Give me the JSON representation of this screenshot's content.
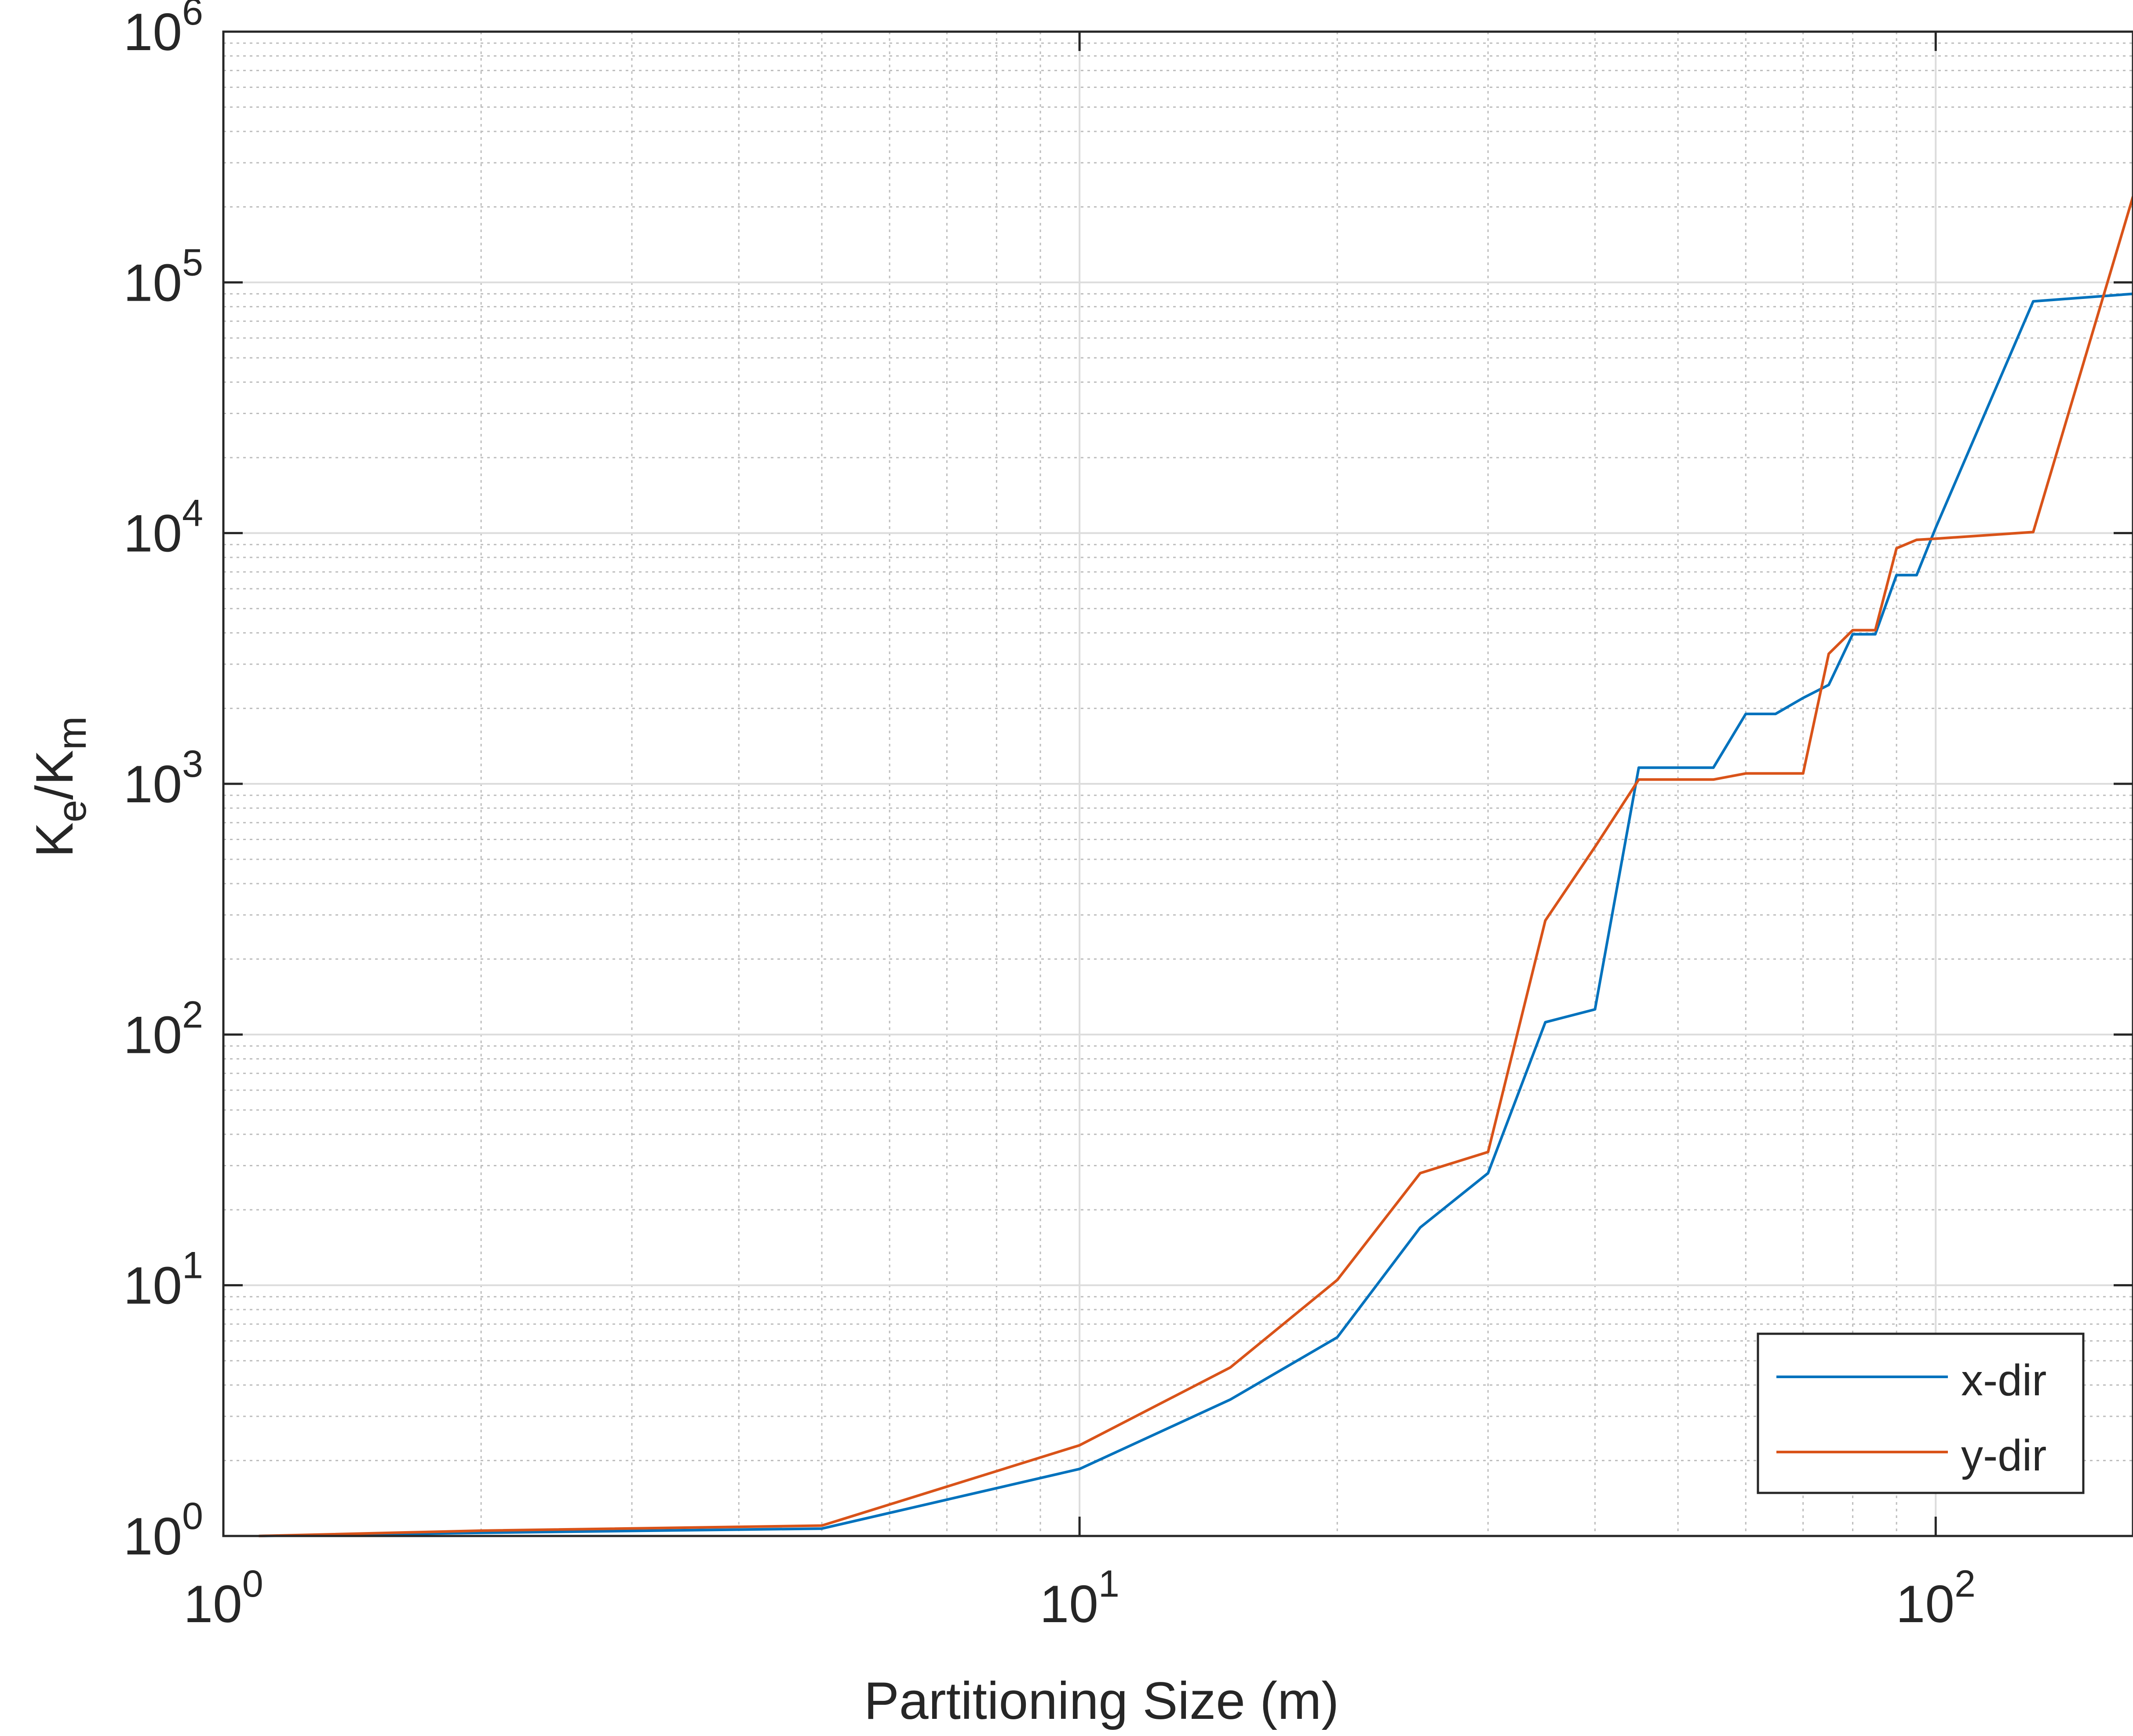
{
  "chart_data": {
    "type": "line",
    "title": "",
    "xlabel": "Partitioning Size (m)",
    "ylabel": {
      "base1": "K",
      "sub1": "e",
      "sep": "/",
      "base2": "K",
      "sub2": "m"
    },
    "x_scale": "log",
    "y_scale": "log",
    "xlim": [
      1,
      170
    ],
    "ylim": [
      1,
      1000000
    ],
    "grid": true,
    "minor_grid": true,
    "legend_position": "bottom-right",
    "x_ticks": [
      {
        "base": "10",
        "exp": "0",
        "value": 1
      },
      {
        "base": "10",
        "exp": "1",
        "value": 10
      },
      {
        "base": "10",
        "exp": "2",
        "value": 100
      }
    ],
    "y_ticks": [
      {
        "base": "10",
        "exp": "0",
        "value": 1
      },
      {
        "base": "10",
        "exp": "1",
        "value": 10
      },
      {
        "base": "10",
        "exp": "2",
        "value": 100
      },
      {
        "base": "10",
        "exp": "3",
        "value": 1000
      },
      {
        "base": "10",
        "exp": "4",
        "value": 10000
      },
      {
        "base": "10",
        "exp": "5",
        "value": 100000
      },
      {
        "base": "10",
        "exp": "6",
        "value": 1000000
      }
    ],
    "series": [
      {
        "name": "x-dir",
        "color": "#0072BD",
        "x": [
          1.1,
          2,
          5,
          10,
          15,
          20,
          25,
          30,
          35,
          40,
          45,
          50,
          55,
          60,
          65,
          70,
          75,
          80,
          85,
          90,
          95,
          100,
          130,
          170
        ],
        "y": [
          1,
          1.03,
          1.07,
          1.85,
          3.5,
          6.2,
          17,
          28,
          112,
          126,
          1160,
          1160,
          1160,
          1900,
          1900,
          2200,
          2480,
          3950,
          3950,
          6800,
          6800,
          10500,
          84000,
          90000
        ]
      },
      {
        "name": "y-dir",
        "color": "#D95319",
        "x": [
          1.1,
          2,
          5,
          10,
          15,
          20,
          25,
          30,
          35,
          40,
          45,
          50,
          55,
          60,
          65,
          70,
          75,
          80,
          85,
          90,
          95,
          100,
          130,
          170
        ],
        "y": [
          1,
          1.05,
          1.1,
          2.3,
          4.7,
          10.5,
          28,
          34,
          285,
          560,
          1040,
          1040,
          1040,
          1100,
          1100,
          1100,
          3300,
          4100,
          4100,
          8700,
          9400,
          9500,
          10100,
          220000
        ]
      }
    ]
  }
}
